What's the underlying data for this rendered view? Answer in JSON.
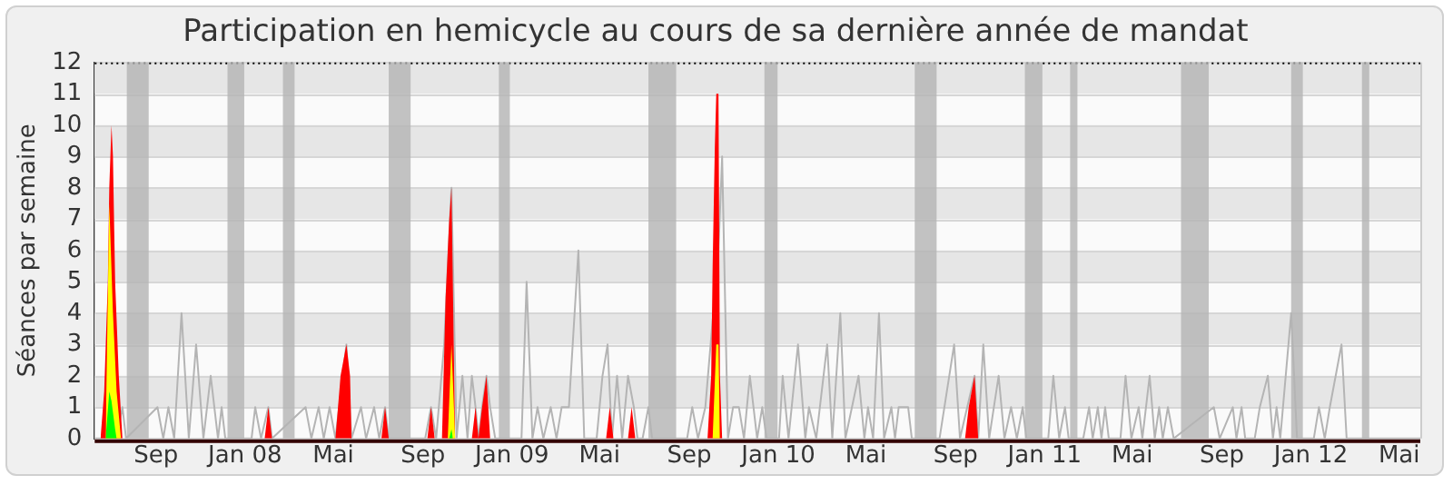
{
  "chart_data": {
    "type": "area",
    "title": "Participation en hemicycle au cours de sa dernière année de mandat",
    "ylabel": "Séances par semaine",
    "xlim": [
      "2007-06-09",
      "2012-05-30"
    ],
    "xticks": [
      {
        "value": "2007-09-01",
        "label": "Sep"
      },
      {
        "value": "2008-01-01",
        "label": "Jan 08"
      },
      {
        "value": "2008-05-01",
        "label": "Mai"
      },
      {
        "value": "2008-09-01",
        "label": "Sep"
      },
      {
        "value": "2009-01-01",
        "label": "Jan 09"
      },
      {
        "value": "2009-05-01",
        "label": "Mai"
      },
      {
        "value": "2009-09-01",
        "label": "Sep"
      },
      {
        "value": "2010-01-01",
        "label": "Jan 10"
      },
      {
        "value": "2010-05-01",
        "label": "Mai"
      },
      {
        "value": "2010-09-01",
        "label": "Sep"
      },
      {
        "value": "2011-01-01",
        "label": "Jan 11"
      },
      {
        "value": "2011-05-01",
        "label": "Mai"
      },
      {
        "value": "2011-09-01",
        "label": "Sep"
      },
      {
        "value": "2012-01-01",
        "label": "Jan 12"
      },
      {
        "value": "2012-05-01",
        "label": "Mai"
      }
    ],
    "ylim": [
      0,
      12
    ],
    "yticks": [
      0,
      1,
      2,
      3,
      4,
      5,
      6,
      7,
      8,
      9,
      10,
      11,
      12
    ],
    "grid": true,
    "bands": [
      {
        "axis": "x",
        "from": "2007-07-23",
        "to": "2007-08-22",
        "color": "#b4b4b4"
      },
      {
        "axis": "x",
        "from": "2007-12-08",
        "to": "2007-12-31",
        "color": "#b4b4b4"
      },
      {
        "axis": "x",
        "from": "2008-02-22",
        "to": "2008-03-09",
        "color": "#b4b4b4"
      },
      {
        "axis": "x",
        "from": "2008-07-16",
        "to": "2008-08-15",
        "color": "#b4b4b4"
      },
      {
        "axis": "x",
        "from": "2008-12-14",
        "to": "2008-12-29",
        "color": "#b4b4b4"
      },
      {
        "axis": "x",
        "from": "2009-07-07",
        "to": "2009-08-14",
        "color": "#b4b4b4"
      },
      {
        "axis": "x",
        "from": "2009-12-13",
        "to": "2009-12-31",
        "color": "#b4b4b4"
      },
      {
        "axis": "x",
        "from": "2010-07-07",
        "to": "2010-08-06",
        "color": "#b4b4b4"
      },
      {
        "axis": "x",
        "from": "2010-12-05",
        "to": "2010-12-29",
        "color": "#b4b4b4"
      },
      {
        "axis": "x",
        "from": "2011-02-05",
        "to": "2011-02-15",
        "color": "#b4b4b4"
      },
      {
        "axis": "x",
        "from": "2011-07-07",
        "to": "2011-08-14",
        "color": "#b4b4b4"
      },
      {
        "axis": "x",
        "from": "2011-12-05",
        "to": "2011-12-21",
        "color": "#b4b4b4"
      },
      {
        "axis": "x",
        "from": "2012-03-11",
        "to": "2012-03-21",
        "color": "#b4b4b4"
      }
    ],
    "series": [
      {
        "type": "line",
        "color": "#b4b4b4",
        "x": [
          "2007-06-09",
          "2007-07-09",
          "2007-07-17",
          "2007-07-22",
          "2007-09-03",
          "2007-09-11",
          "2007-09-18",
          "2007-09-26",
          "2007-10-06",
          "2007-10-16",
          "2007-10-26",
          "2007-11-05",
          "2007-11-15",
          "2007-11-25",
          "2007-11-30",
          "2007-12-05",
          "2008-01-10",
          "2008-01-15",
          "2008-01-23",
          "2008-02-02",
          "2008-02-07",
          "2008-03-24",
          "2008-04-01",
          "2008-04-11",
          "2008-04-18",
          "2008-04-26",
          "2008-05-04",
          "2008-05-19",
          "2008-05-26",
          "2008-06-08",
          "2008-06-15",
          "2008-06-26",
          "2008-07-03",
          "2008-07-11",
          "2008-07-16",
          "2008-09-04",
          "2008-09-12",
          "2008-09-19",
          "2008-09-30",
          "2008-10-10",
          "2008-10-17",
          "2008-10-25",
          "2008-11-01",
          "2008-11-07",
          "2008-11-12",
          "2008-11-16",
          "2008-11-21",
          "2008-11-27",
          "2008-12-02",
          "2008-12-09",
          "2009-01-14",
          "2009-01-21",
          "2009-01-29",
          "2009-02-05",
          "2009-02-13",
          "2009-02-23",
          "2009-03-03",
          "2009-03-10",
          "2009-03-20",
          "2009-04-02",
          "2009-04-10",
          "2009-04-27",
          "2009-05-05",
          "2009-05-12",
          "2009-05-18",
          "2009-05-25",
          "2009-06-01",
          "2009-06-09",
          "2009-06-17",
          "2009-06-22",
          "2009-06-29",
          "2009-07-07",
          "2009-07-12",
          "2009-08-29",
          "2009-09-05",
          "2009-09-13",
          "2009-09-23",
          "2009-10-11",
          "2009-10-16",
          "2009-10-24",
          "2009-10-31",
          "2009-11-08",
          "2009-11-15",
          "2009-11-23",
          "2009-12-03",
          "2009-12-10",
          "2009-12-16",
          "2010-01-02",
          "2010-01-07",
          "2010-01-15",
          "2010-01-28",
          "2010-02-07",
          "2010-02-12",
          "2010-02-22",
          "2010-03-09",
          "2010-03-16",
          "2010-03-27",
          "2010-04-03",
          "2010-04-21",
          "2010-04-29",
          "2010-05-04",
          "2010-05-11",
          "2010-05-19",
          "2010-05-26",
          "2010-06-05",
          "2010-06-10",
          "2010-06-15",
          "2010-06-28",
          "2010-07-03",
          "2010-08-10",
          "2010-08-30",
          "2010-09-07",
          "2010-09-27",
          "2010-10-02",
          "2010-10-09",
          "2010-10-17",
          "2010-10-30",
          "2010-11-07",
          "2010-11-16",
          "2010-11-24",
          "2010-12-02",
          "2010-12-07",
          "2011-01-06",
          "2011-01-13",
          "2011-01-21",
          "2011-01-29",
          "2011-02-03",
          "2011-02-23",
          "2011-03-03",
          "2011-03-08",
          "2011-03-15",
          "2011-03-20",
          "2011-03-25",
          "2011-03-30",
          "2011-04-15",
          "2011-04-22",
          "2011-04-30",
          "2011-05-10",
          "2011-05-15",
          "2011-05-25",
          "2011-06-01",
          "2011-06-07",
          "2011-06-12",
          "2011-06-19",
          "2011-06-27",
          "2011-08-21",
          "2011-08-29",
          "2011-09-16",
          "2011-09-21",
          "2011-09-28",
          "2011-10-03",
          "2011-10-16",
          "2011-10-23",
          "2011-11-03",
          "2011-11-10",
          "2011-11-15",
          "2011-11-20",
          "2011-12-05",
          "2011-12-13",
          "2012-01-05",
          "2012-01-12",
          "2012-01-20",
          "2012-01-27",
          "2012-02-12",
          "2012-02-19",
          "2012-05-30"
        ],
        "values": [
          0,
          0,
          1,
          0,
          1,
          0,
          1,
          0,
          4,
          0,
          3,
          0,
          2,
          0,
          1,
          0,
          0,
          1,
          0,
          1,
          0,
          1,
          0,
          1,
          0,
          1,
          0,
          3,
          0,
          1,
          0,
          1,
          0,
          1,
          0,
          0,
          1,
          0,
          3,
          8,
          0,
          2,
          0,
          2,
          1,
          0,
          1,
          2,
          1,
          0,
          0,
          5,
          0,
          1,
          0,
          1,
          0,
          1,
          1,
          6,
          0,
          0,
          2,
          3,
          0,
          2,
          0,
          2,
          1,
          0,
          0,
          1,
          0,
          0,
          1,
          0,
          1,
          6,
          9,
          0,
          1,
          1,
          0,
          2,
          0,
          1,
          0,
          0,
          2,
          0,
          3,
          0,
          1,
          0,
          3,
          0,
          4,
          0,
          2,
          0,
          1,
          0,
          4,
          0,
          1,
          0,
          1,
          1,
          0,
          0,
          3,
          0,
          2,
          0,
          3,
          0,
          2,
          0,
          1,
          0,
          1,
          0,
          0,
          2,
          0,
          1,
          0,
          0,
          1,
          0,
          1,
          0,
          1,
          0,
          0,
          2,
          0,
          1,
          0,
          2,
          0,
          1,
          0,
          1,
          0,
          1,
          0,
          1,
          0,
          1,
          0,
          0,
          1,
          2,
          0,
          1,
          0,
          4,
          0,
          0,
          1,
          0,
          1,
          3,
          0,
          0
        ]
      },
      {
        "color": "#ff0000",
        "x": [
          "2007-06-17",
          "2007-06-22",
          "2007-06-27",
          "2007-06-29",
          "2007-07-02",
          "2007-07-04",
          "2007-07-07",
          "2007-07-12",
          "2007-07-17",
          "2008-01-28",
          "2008-02-02",
          "2008-02-07",
          "2008-05-04",
          "2008-05-11",
          "2008-05-19",
          "2008-05-24",
          "2008-05-26",
          "2008-07-06",
          "2008-07-11",
          "2008-07-16",
          "2008-09-07",
          "2008-09-12",
          "2008-09-17",
          "2008-09-27",
          "2008-10-02",
          "2008-10-07",
          "2008-10-10",
          "2008-10-15",
          "2008-11-07",
          "2008-11-12",
          "2008-11-16",
          "2008-11-21",
          "2008-11-27",
          "2008-12-02",
          "2009-05-10",
          "2009-05-15",
          "2009-05-20",
          "2009-06-09",
          "2009-06-14",
          "2009-06-19",
          "2009-09-26",
          "2009-10-01",
          "2009-10-03",
          "2009-10-06",
          "2009-10-08",
          "2009-10-11",
          "2009-10-13",
          "2009-10-16",
          "2010-09-14",
          "2010-09-19",
          "2010-09-27",
          "2010-10-02"
        ],
        "values": [
          0,
          1.5,
          5,
          8,
          10,
          9,
          5,
          2,
          0,
          0,
          1,
          0,
          0,
          2,
          3,
          2,
          0,
          0,
          1,
          0,
          0,
          1,
          0,
          0,
          4.5,
          7,
          8,
          0,
          0,
          1,
          0,
          1,
          2,
          0,
          0,
          1,
          0,
          0,
          1,
          0,
          0,
          2,
          5.5,
          9.3,
          11,
          11,
          2,
          0,
          0,
          1,
          2,
          0
        ]
      },
      {
        "color": "#ffff00",
        "x": [
          "2007-06-24",
          "2007-06-29",
          "2007-07-04",
          "2007-07-09",
          "2007-07-15",
          "2008-10-05",
          "2008-10-10",
          "2008-10-15",
          "2009-10-03",
          "2009-10-08",
          "2009-10-11",
          "2009-10-13"
        ],
        "values": [
          0,
          7.5,
          4,
          1.5,
          0,
          0,
          3,
          0,
          0,
          3,
          3,
          0
        ]
      },
      {
        "color": "#00ff00",
        "x": [
          "2007-06-24",
          "2007-06-29",
          "2007-07-02",
          "2007-07-07",
          "2007-07-09",
          "2008-10-07",
          "2008-10-10",
          "2008-10-12"
        ],
        "values": [
          0,
          1.5,
          1.2,
          0.3,
          0,
          0,
          0.3,
          0
        ]
      }
    ]
  }
}
